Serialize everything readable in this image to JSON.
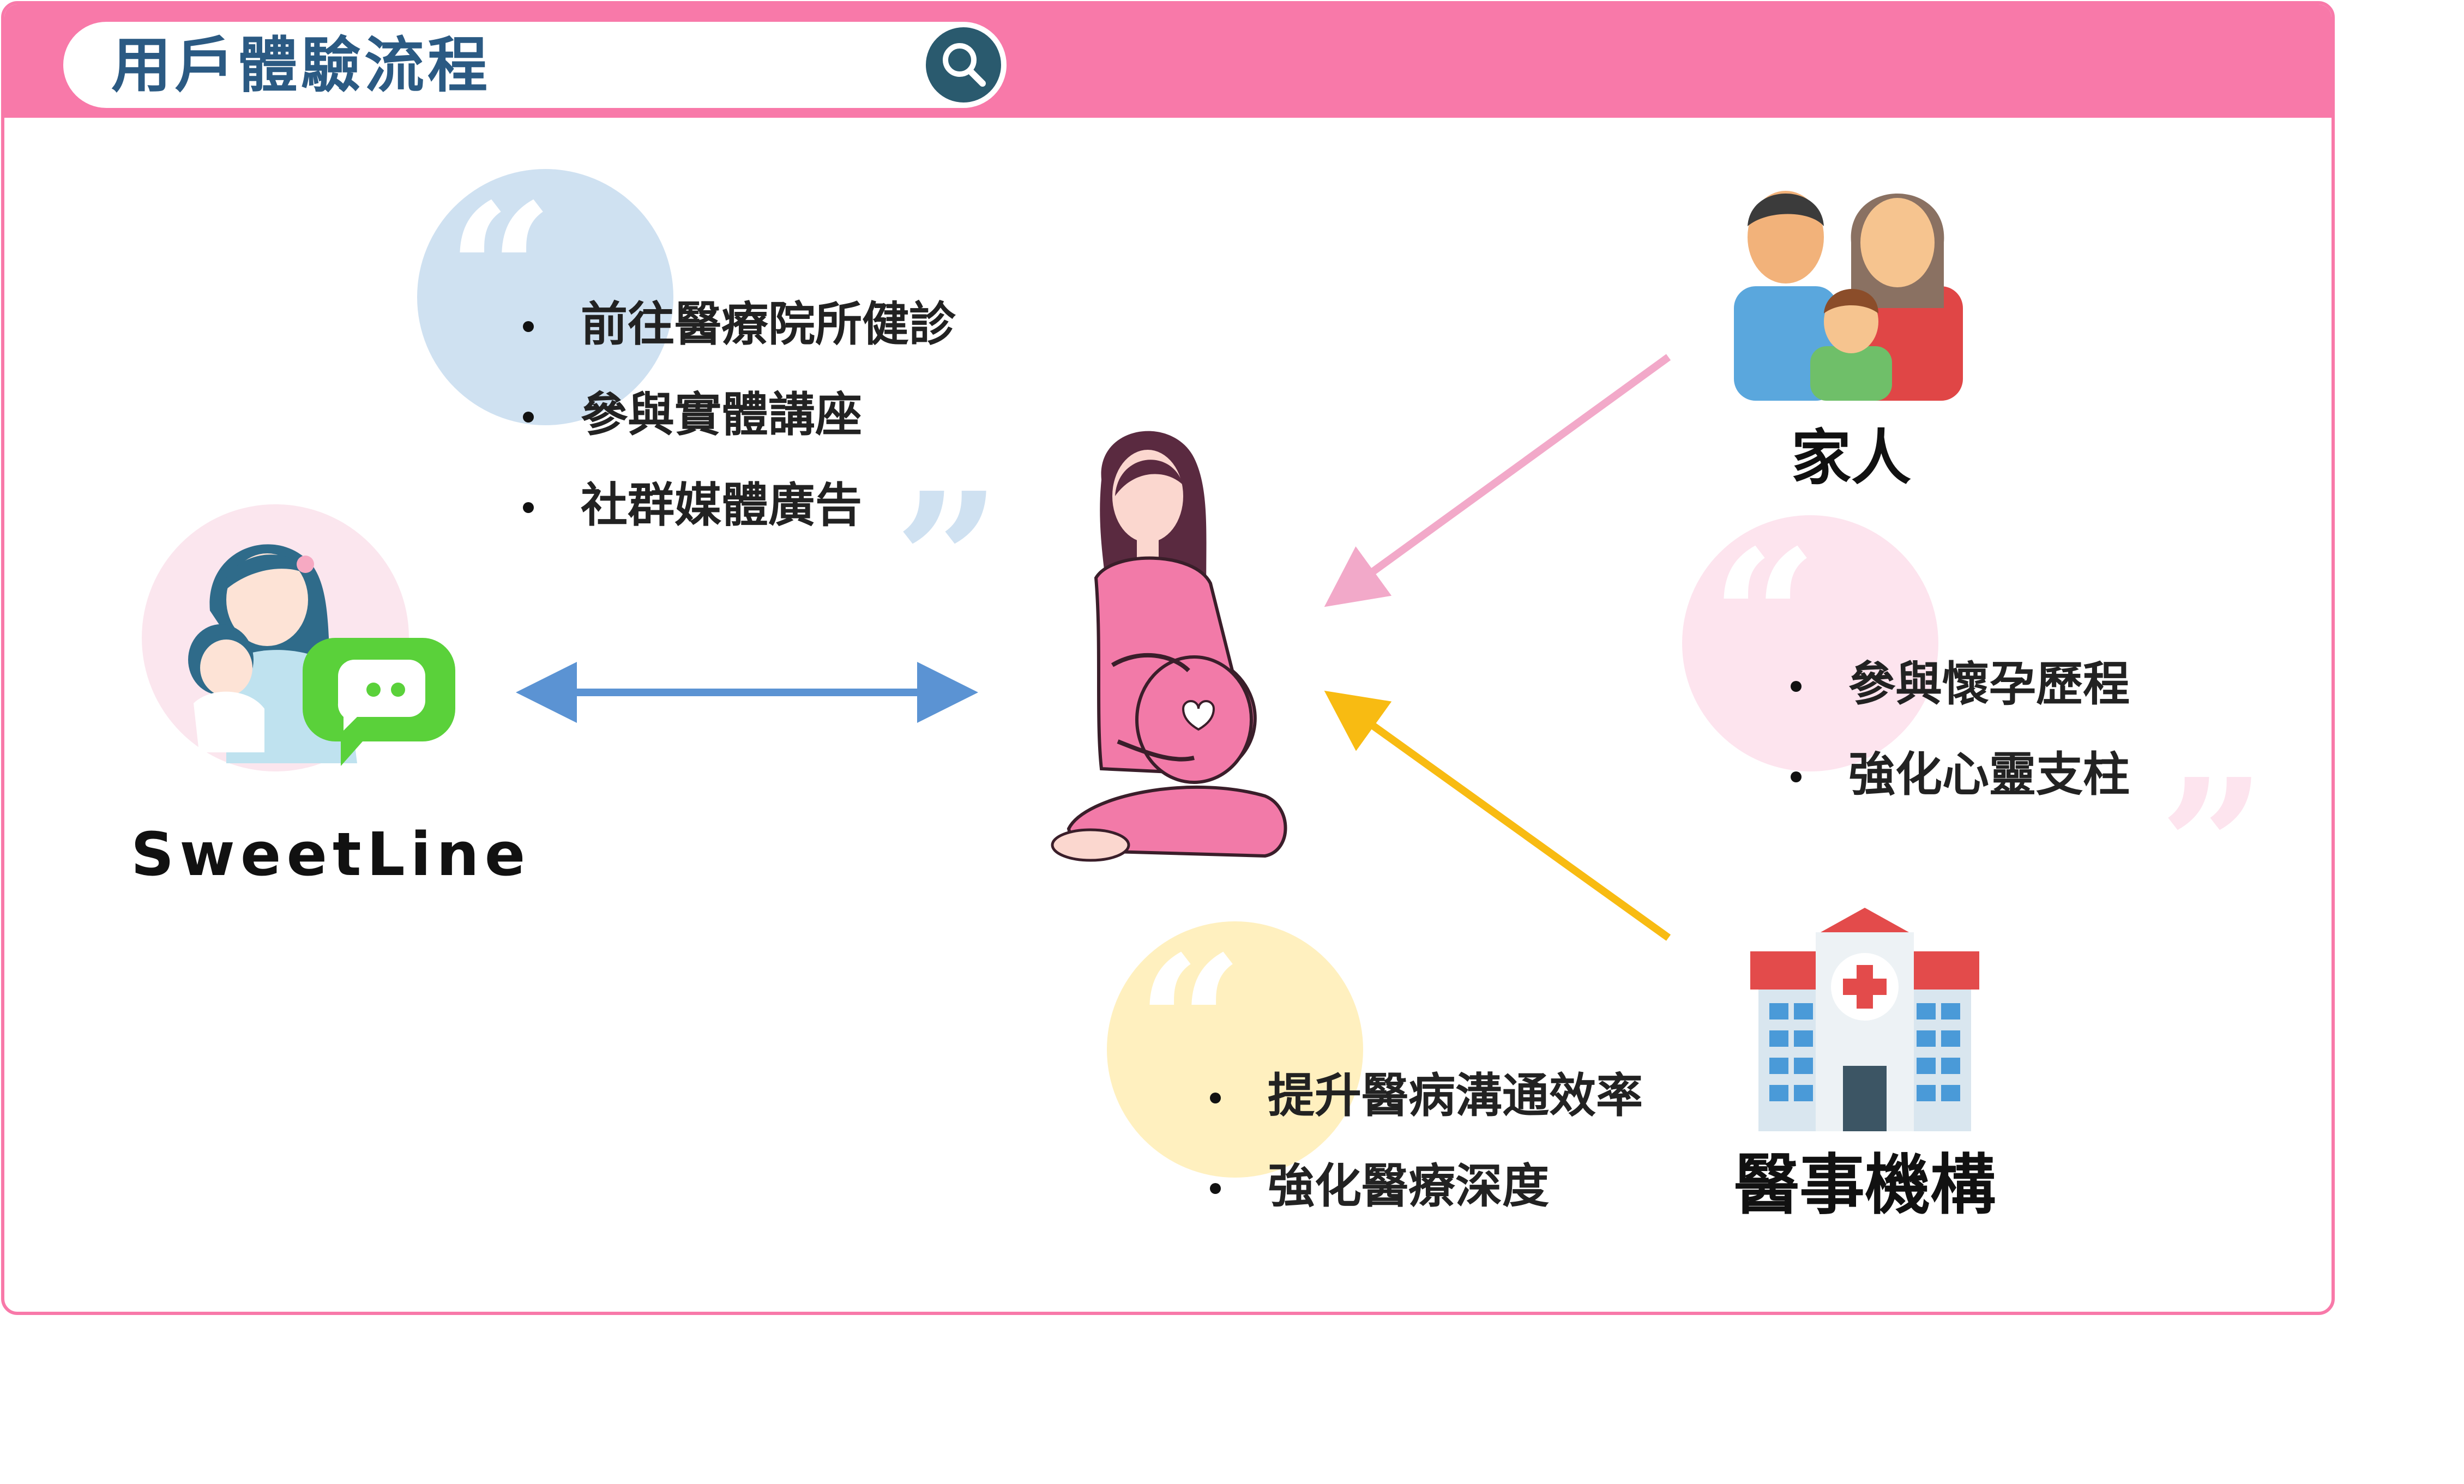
{
  "header": {
    "title": "用戶體驗流程",
    "search_icon": "search-icon"
  },
  "sweetline": {
    "name": "SweetLine",
    "icon": "chat-bubble-icon"
  },
  "family": {
    "label": "家人",
    "icon": "family-icon"
  },
  "medical": {
    "label": "醫事機構",
    "icon": "hospital-icon"
  },
  "center": {
    "icon": "pregnant-woman-icon"
  },
  "quotes": {
    "blue": [
      "前往醫療院所健診",
      "參與實體講座",
      "社群媒體廣告"
    ],
    "pink": [
      "參與懷孕歷程",
      "強化心靈支柱"
    ],
    "yellow": [
      "提升醫病溝通效率",
      "強化醫療深度"
    ]
  },
  "colors": {
    "brand_pink": "#f879a9",
    "title_blue": "#2b5a83",
    "arrow_blue": "#5b93d3",
    "arrow_pink": "#f2a9c9",
    "arrow_yellow": "#f8bb12",
    "bubble_blue": "#cfe1f1",
    "bubble_pink": "#fde4ee",
    "bubble_yellow": "#fff0bf"
  }
}
